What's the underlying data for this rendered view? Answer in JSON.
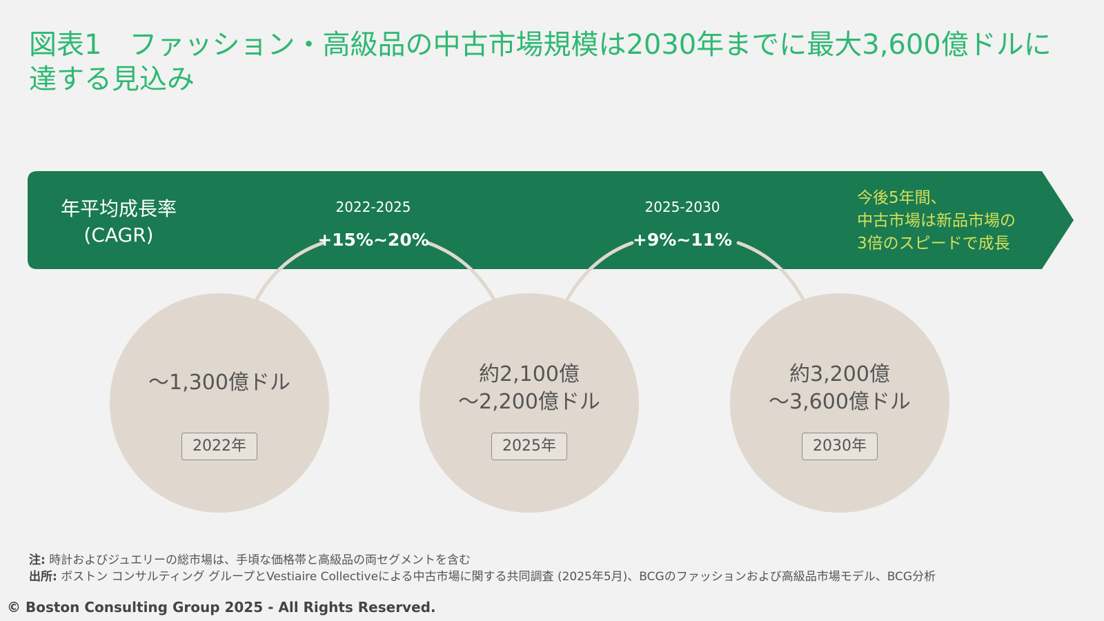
{
  "title": {
    "line1": "図表1　ファッション・高級品の中古市場規模は2030年までに最大3,600億ドルに",
    "line2": "達する見込み"
  },
  "banner": {
    "label_line1": "年平均成長率",
    "label_line2": "(CAGR)",
    "periods": [
      {
        "range": "2022-2025",
        "rate": "+15%~20%"
      },
      {
        "range": "2025-2030",
        "rate": "+9%~11%"
      }
    ],
    "headline_lines": [
      "今後5年間、",
      "中古市場は新品市場の",
      "3倍のスピードで成長"
    ],
    "colors": {
      "banner": "#1a7a52",
      "headline": "#d4e157",
      "title": "#2eb872"
    }
  },
  "stages": [
    {
      "value_lines": [
        "～1,300億ドル"
      ],
      "year": "2022年"
    },
    {
      "value_lines": [
        "約2,100億",
        "～2,200億ドル"
      ],
      "year": "2025年"
    },
    {
      "value_lines": [
        "約3,200億",
        "～3,600億ドル"
      ],
      "year": "2030年"
    }
  ],
  "notes": {
    "note_label": "注:",
    "note_text": "時計およびジュエリーの総市場は、手頃な価格帯と高級品の両セグメントを含む",
    "source_label": "出所:",
    "source_text": "ボストン コンサルティング グループとVestiaire Collectiveによる中古市場に関する共同調査 (2025年5月)、BCGのファッションおよび高級品市場モデル、BCG分析"
  },
  "copyright": "© Boston Consulting Group 2025 - All Rights Reserved."
}
